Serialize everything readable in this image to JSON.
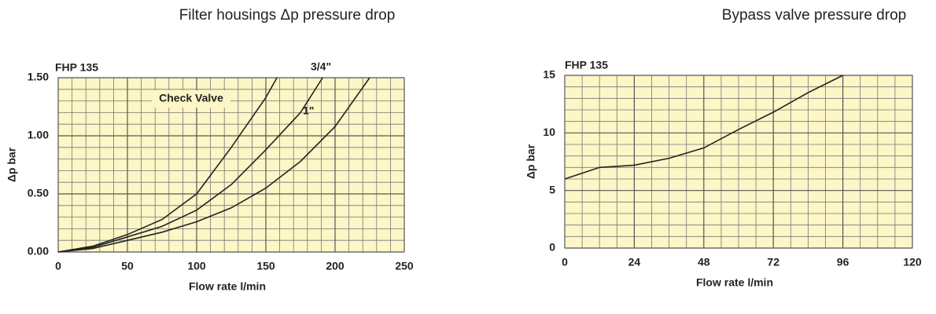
{
  "chart_data": [
    {
      "type": "line",
      "title": "Filter housings Δp pressure drop",
      "subtitle": "FHP 135",
      "x_label": "Flow rate l/min",
      "y_label": "Δp bar",
      "xlim": [
        0,
        250
      ],
      "xticks": [
        0,
        50,
        100,
        150,
        200,
        250
      ],
      "ylim": [
        0,
        1.5
      ],
      "yticks": [
        {
          "value": 0,
          "label": "0.00"
        },
        {
          "value": 0.5,
          "label": "0.50"
        },
        {
          "value": 1,
          "label": "1.00"
        },
        {
          "value": 1.5,
          "label": "1.50"
        }
      ],
      "grid": true,
      "annotations": [
        "Check Valve"
      ],
      "series": [
        {
          "name": "3/4\"",
          "color": "#222222",
          "x": [
            0,
            25,
            50,
            75,
            100,
            125,
            150,
            158
          ],
          "values": [
            0,
            0.05,
            0.15,
            0.28,
            0.5,
            0.9,
            1.33,
            1.5
          ]
        },
        {
          "name": "1\"",
          "color": "#222222",
          "x": [
            0,
            25,
            50,
            75,
            100,
            125,
            150,
            175,
            191
          ],
          "values": [
            0,
            0.04,
            0.13,
            0.22,
            0.36,
            0.58,
            0.88,
            1.2,
            1.5
          ]
        },
        {
          "color": "#222222",
          "x": [
            0,
            25,
            50,
            75,
            100,
            125,
            150,
            175,
            200,
            225
          ],
          "values": [
            0,
            0.03,
            0.1,
            0.17,
            0.26,
            0.38,
            0.55,
            0.78,
            1.08,
            1.5
          ]
        }
      ]
    },
    {
      "type": "line",
      "title": "Bypass valve pressure drop",
      "subtitle": "FHP 135",
      "x_label": "Flow rate l/min",
      "y_label": "Δp bar",
      "xlim": [
        0,
        120
      ],
      "xticks": [
        0,
        24,
        48,
        72,
        96,
        120
      ],
      "ylim": [
        0,
        15
      ],
      "yticks": [
        0,
        5,
        10,
        15
      ],
      "grid": true,
      "series": [
        {
          "color": "#222222",
          "x": [
            0,
            12,
            24,
            36,
            48,
            60,
            72,
            84,
            96
          ],
          "values": [
            6,
            7,
            7.2,
            7.8,
            8.7,
            10.3,
            11.8,
            13.5,
            15
          ]
        }
      ]
    }
  ]
}
